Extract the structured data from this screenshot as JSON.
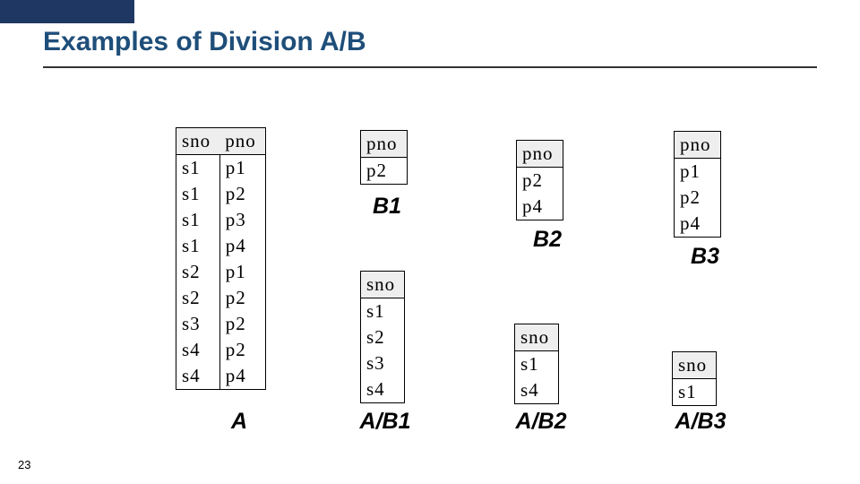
{
  "page": {
    "title": "Examples of Division A/B",
    "number": "23"
  },
  "colors": {
    "topbar": "#1f3863",
    "title": "#1f4e79",
    "header_bg": "#eeeeee",
    "border": "#000000",
    "text": "#000000",
    "background": "#ffffff"
  },
  "fonts": {
    "title_size": 30,
    "label_size": 25,
    "table_size": 21
  },
  "tables": {
    "A": {
      "label": "A",
      "columns": [
        "sno",
        "pno"
      ],
      "rows": [
        [
          "s1",
          "p1"
        ],
        [
          "s1",
          "p2"
        ],
        [
          "s1",
          "p3"
        ],
        [
          "s1",
          "p4"
        ],
        [
          "s2",
          "p1"
        ],
        [
          "s2",
          "p2"
        ],
        [
          "s3",
          "p2"
        ],
        [
          "s4",
          "p2"
        ],
        [
          "s4",
          "p4"
        ]
      ]
    },
    "B1": {
      "label": "B1",
      "columns": [
        "pno"
      ],
      "rows": [
        [
          "p2"
        ]
      ]
    },
    "AB1": {
      "label": "A/B1",
      "columns": [
        "sno"
      ],
      "rows": [
        [
          "s1"
        ],
        [
          "s2"
        ],
        [
          "s3"
        ],
        [
          "s4"
        ]
      ]
    },
    "B2": {
      "label": "B2",
      "columns": [
        "pno"
      ],
      "rows": [
        [
          "p2"
        ],
        [
          "p4"
        ]
      ]
    },
    "AB2": {
      "label": "A/B2",
      "columns": [
        "sno"
      ],
      "rows": [
        [
          "s1"
        ],
        [
          "s4"
        ]
      ]
    },
    "B3": {
      "label": "B3",
      "columns": [
        "pno"
      ],
      "rows": [
        [
          "p1"
        ],
        [
          "p2"
        ],
        [
          "p4"
        ]
      ]
    },
    "AB3": {
      "label": "A/B3",
      "columns": [
        "sno"
      ],
      "rows": [
        [
          "s1"
        ]
      ]
    }
  }
}
